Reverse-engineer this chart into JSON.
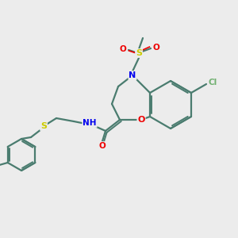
{
  "bg_color": "#ececec",
  "bond_color": "#4a7c6f",
  "atom_colors": {
    "N": "#0000ee",
    "O": "#ee0000",
    "S": "#cccc00",
    "Cl": "#70b070",
    "C": "#000000"
  },
  "figsize": [
    3.0,
    3.0
  ],
  "dpi": 100
}
